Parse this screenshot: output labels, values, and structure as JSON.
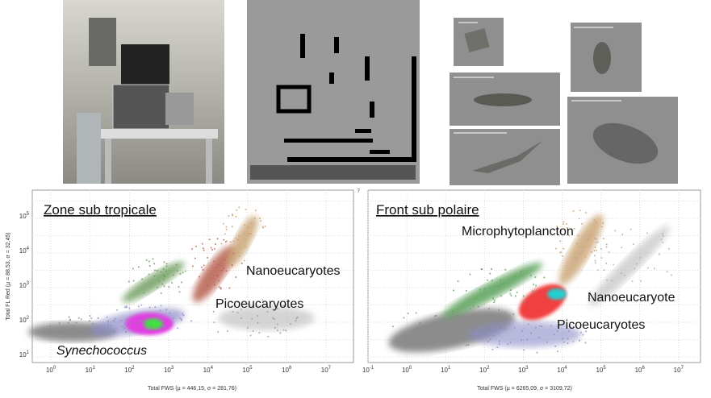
{
  "plots": [
    {
      "title": "Zone sub tropicale",
      "x_axis_title": "Total FWS (μ = 446,15, σ = 281,76)",
      "y_axis_title": "Total FL Red (μ = 88,53, σ = 32,45)",
      "x_ticks": [
        {
          "base": "10",
          "exp": "0"
        },
        {
          "base": "10",
          "exp": "1"
        },
        {
          "base": "10",
          "exp": "2"
        },
        {
          "base": "10",
          "exp": "3"
        },
        {
          "base": "10",
          "exp": "4"
        },
        {
          "base": "10",
          "exp": "5"
        },
        {
          "base": "10",
          "exp": "6"
        },
        {
          "base": "10",
          "exp": "7"
        }
      ],
      "y_ticks": [
        {
          "base": "10",
          "exp": "1"
        },
        {
          "base": "10",
          "exp": "2"
        },
        {
          "base": "10",
          "exp": "3"
        },
        {
          "base": "10",
          "exp": "4"
        },
        {
          "base": "10",
          "exp": "5"
        }
      ],
      "labels": [
        "Nanoeucaryotes",
        "Picoeucaryotes",
        "Synechococcus"
      ]
    },
    {
      "title": "Front sub polaire",
      "x_axis_title": "Total FWS (μ = 6265,09, σ = 3109,72)",
      "x_ticks": [
        {
          "base": "10",
          "exp": "-1"
        },
        {
          "base": "10",
          "exp": "0"
        },
        {
          "base": "10",
          "exp": "1"
        },
        {
          "base": "10",
          "exp": "2"
        },
        {
          "base": "10",
          "exp": "3"
        },
        {
          "base": "10",
          "exp": "4"
        },
        {
          "base": "10",
          "exp": "5"
        },
        {
          "base": "10",
          "exp": "6"
        },
        {
          "base": "10",
          "exp": "7"
        }
      ],
      "y_ticks": [
        {
          "base": "",
          "exp": "7"
        }
      ],
      "labels": [
        "Microphytoplancton",
        "Nanoeucaryote",
        "Picoeucaryotes"
      ]
    }
  ]
}
